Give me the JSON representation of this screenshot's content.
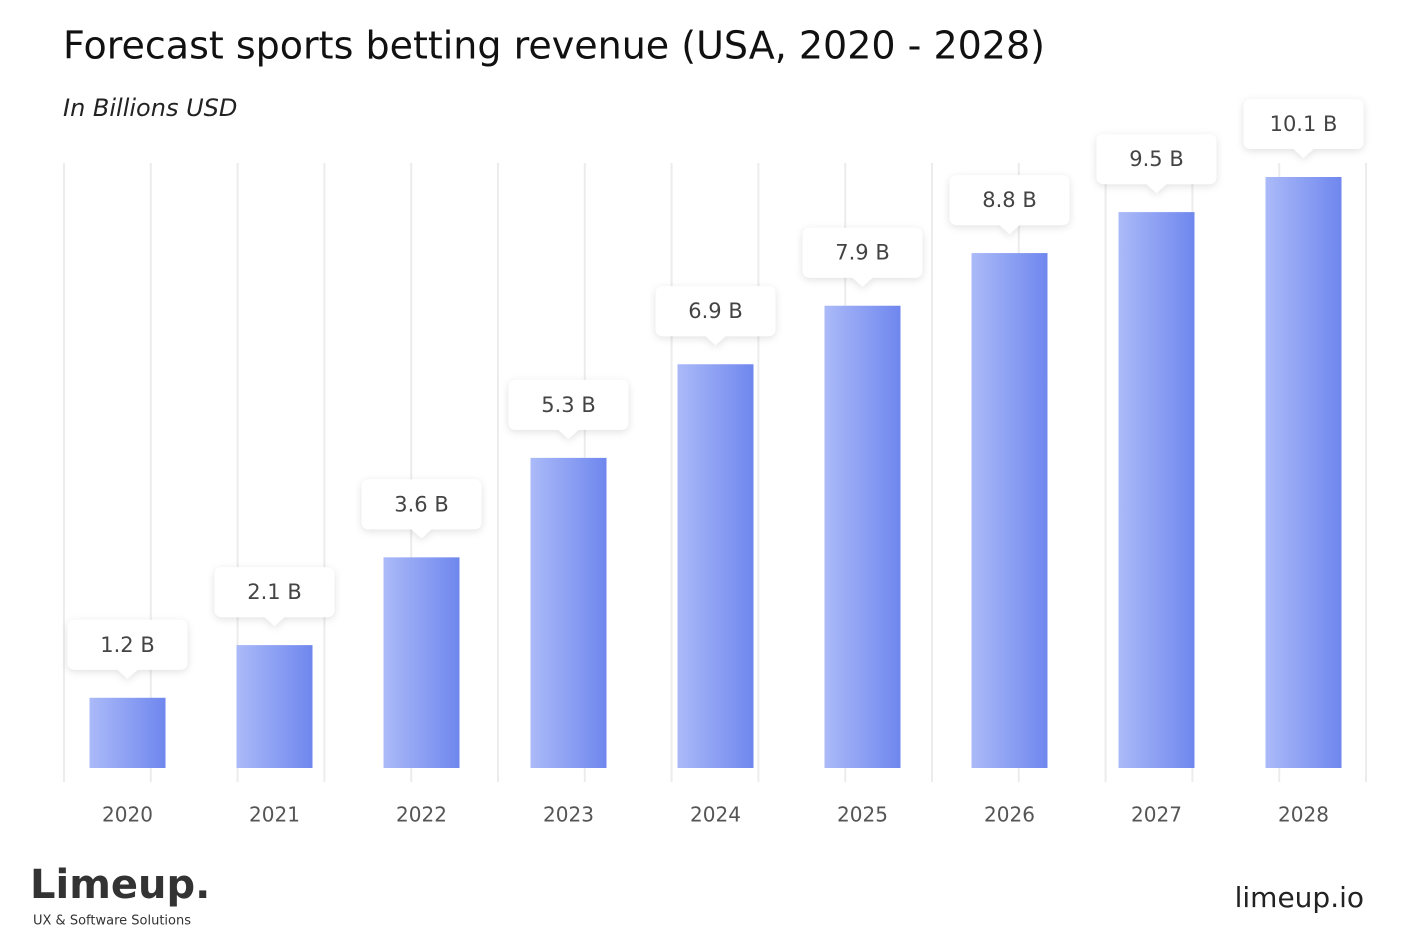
{
  "chart_data": {
    "type": "bar",
    "title": "Forecast sports betting revenue (USA, 2020 - 2028)",
    "subtitle": "In Billions USD",
    "categories": [
      "2020",
      "2021",
      "2022",
      "2023",
      "2024",
      "2025",
      "2026",
      "2027",
      "2028"
    ],
    "values": [
      1.2,
      2.1,
      3.6,
      5.3,
      6.9,
      7.9,
      8.8,
      9.5,
      10.1
    ],
    "value_labels": [
      "1.2 B",
      "2.1 B",
      "3.6 B",
      "5.3 B",
      "6.9 B",
      "7.9 B",
      "8.8 B",
      "9.5 B",
      "10.1 B"
    ],
    "color": "#7f95f1"
  },
  "brand": {
    "logo": "Limeup.",
    "tagline": "UX & Software Solutions",
    "url": "limeup.io"
  }
}
